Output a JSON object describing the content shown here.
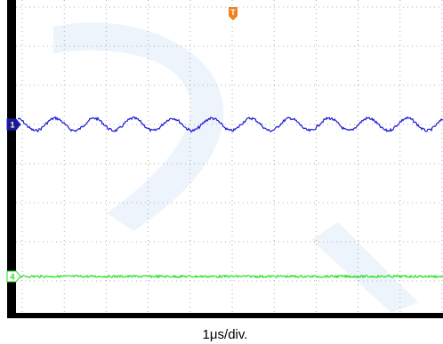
{
  "screen": {
    "caption": "1μs/div.",
    "trigger_marker": "T",
    "channels": [
      {
        "label": "1",
        "color": "#1a1ad6"
      },
      {
        "label": "4",
        "color": "#22e022"
      }
    ]
  }
}
